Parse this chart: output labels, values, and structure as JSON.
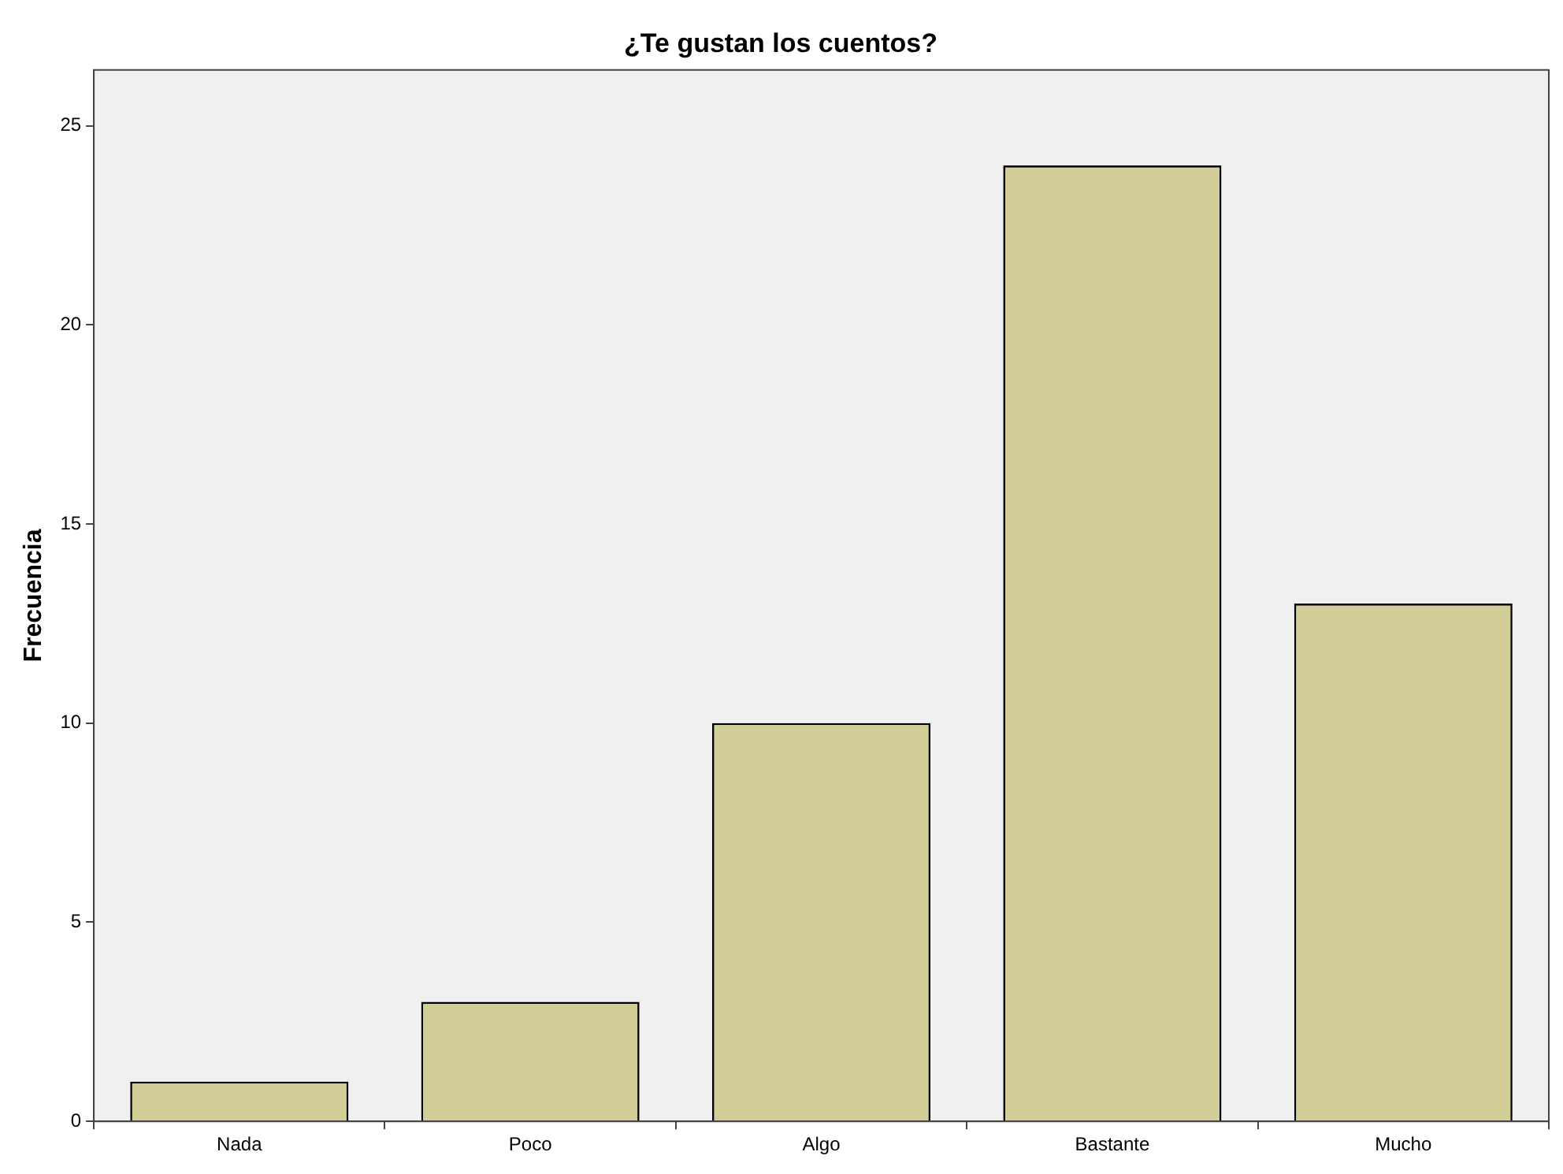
{
  "chart_data": {
    "type": "bar",
    "title": "¿Te gustan los cuentos?",
    "ylabel": "Frecuencia",
    "categories": [
      "Nada",
      "Poco",
      "Algo",
      "Bastante",
      "Mucho"
    ],
    "values": [
      1,
      3,
      10,
      24,
      13
    ],
    "color": "#d3ce97",
    "ylim": [
      0,
      26.4
    ],
    "yticks": [
      0,
      5,
      10,
      15,
      20,
      25
    ],
    "grid": false,
    "legend": false
  }
}
